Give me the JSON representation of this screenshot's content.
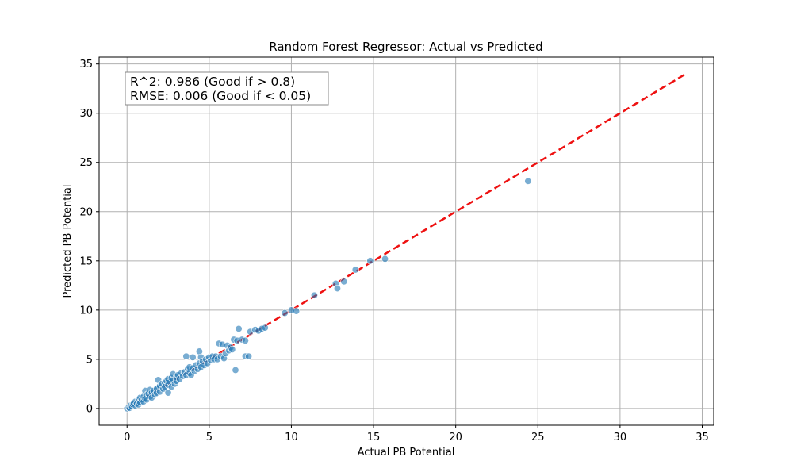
{
  "chart_data": {
    "type": "scatter",
    "title": "Random Forest Regressor: Actual vs Predicted",
    "xlabel": "Actual PB Potential",
    "ylabel": "Predicted PB Potential",
    "xlim": [
      -1.7,
      35.7
    ],
    "ylim": [
      -1.7,
      35.7
    ],
    "x_ticks": [
      0,
      5,
      10,
      15,
      20,
      25,
      30,
      35
    ],
    "y_ticks": [
      0,
      5,
      10,
      15,
      20,
      25,
      30,
      35
    ],
    "x_tick_labels": [
      "0",
      "5",
      "10",
      "15",
      "20",
      "25",
      "30",
      "35"
    ],
    "y_tick_labels": [
      "0",
      "5",
      "10",
      "15",
      "20",
      "25",
      "30",
      "35"
    ],
    "grid": true,
    "annotation": {
      "lines": [
        "R^2: 0.986 (Good if > 0.8)",
        "RMSE: 0.006 (Good if < 0.05)"
      ],
      "placement": "top-left"
    },
    "reference_line": {
      "from": [
        0,
        0
      ],
      "to": [
        34,
        34
      ],
      "style": "dashed",
      "color": "#ee1111"
    },
    "point_color": "#1f77b4",
    "point_edge_color": "#ffffff",
    "points": [
      [
        0.0,
        0.0
      ],
      [
        0.1,
        0.1
      ],
      [
        0.15,
        0.05
      ],
      [
        0.2,
        0.3
      ],
      [
        0.3,
        0.2
      ],
      [
        0.35,
        0.4
      ],
      [
        0.4,
        0.5
      ],
      [
        0.5,
        0.3
      ],
      [
        0.5,
        0.7
      ],
      [
        0.6,
        0.5
      ],
      [
        0.7,
        0.9
      ],
      [
        0.7,
        0.4
      ],
      [
        0.8,
        0.6
      ],
      [
        0.8,
        1.1
      ],
      [
        0.9,
        0.9
      ],
      [
        1.0,
        1.2
      ],
      [
        1.0,
        0.7
      ],
      [
        1.1,
        1.0
      ],
      [
        1.1,
        1.8
      ],
      [
        1.2,
        1.4
      ],
      [
        1.2,
        0.9
      ],
      [
        1.3,
        1.5
      ],
      [
        1.4,
        1.2
      ],
      [
        1.4,
        1.9
      ],
      [
        1.5,
        1.6
      ],
      [
        1.5,
        1.1
      ],
      [
        1.6,
        1.8
      ],
      [
        1.7,
        1.4
      ],
      [
        1.8,
        2.0
      ],
      [
        1.8,
        1.6
      ],
      [
        1.9,
        2.1
      ],
      [
        1.9,
        2.9
      ],
      [
        2.0,
        1.7
      ],
      [
        2.0,
        2.3
      ],
      [
        2.1,
        2.5
      ],
      [
        2.2,
        2.0
      ],
      [
        2.3,
        2.6
      ],
      [
        2.3,
        2.2
      ],
      [
        2.4,
        2.8
      ],
      [
        2.5,
        2.4
      ],
      [
        2.5,
        3.0
      ],
      [
        2.5,
        1.6
      ],
      [
        2.6,
        2.7
      ],
      [
        2.7,
        3.1
      ],
      [
        2.7,
        2.2
      ],
      [
        2.8,
        2.9
      ],
      [
        2.8,
        3.5
      ],
      [
        2.9,
        2.5
      ],
      [
        3.0,
        3.2
      ],
      [
        3.0,
        2.8
      ],
      [
        3.1,
        3.4
      ],
      [
        3.2,
        3.0
      ],
      [
        3.3,
        3.6
      ],
      [
        3.4,
        3.3
      ],
      [
        3.5,
        3.7
      ],
      [
        3.6,
        3.4
      ],
      [
        3.6,
        5.3
      ],
      [
        3.7,
        4.0
      ],
      [
        3.8,
        3.6
      ],
      [
        3.8,
        4.2
      ],
      [
        3.9,
        3.4
      ],
      [
        4.0,
        4.1
      ],
      [
        4.0,
        5.2
      ],
      [
        4.1,
        3.8
      ],
      [
        4.2,
        4.4
      ],
      [
        4.3,
        4.0
      ],
      [
        4.4,
        4.6
      ],
      [
        4.4,
        5.8
      ],
      [
        4.5,
        4.2
      ],
      [
        4.5,
        5.2
      ],
      [
        4.6,
        4.8
      ],
      [
        4.7,
        4.4
      ],
      [
        4.8,
        5.0
      ],
      [
        4.9,
        4.6
      ],
      [
        5.0,
        5.2
      ],
      [
        5.1,
        4.9
      ],
      [
        5.2,
        5.3
      ],
      [
        5.3,
        5.0
      ],
      [
        5.4,
        5.3
      ],
      [
        5.5,
        5.0
      ],
      [
        5.6,
        6.6
      ],
      [
        5.7,
        5.3
      ],
      [
        5.8,
        6.5
      ],
      [
        5.9,
        5.1
      ],
      [
        6.0,
        5.6
      ],
      [
        6.1,
        6.4
      ],
      [
        6.2,
        5.9
      ],
      [
        6.3,
        6.2
      ],
      [
        6.4,
        6.0
      ],
      [
        6.5,
        7.0
      ],
      [
        6.6,
        3.9
      ],
      [
        6.7,
        6.9
      ],
      [
        6.8,
        8.1
      ],
      [
        7.0,
        7.0
      ],
      [
        7.2,
        5.3
      ],
      [
        7.2,
        6.9
      ],
      [
        7.4,
        5.3
      ],
      [
        7.5,
        7.8
      ],
      [
        7.8,
        8.0
      ],
      [
        8.0,
        7.9
      ],
      [
        8.2,
        8.1
      ],
      [
        8.4,
        8.2
      ],
      [
        9.6,
        9.7
      ],
      [
        10.0,
        10.0
      ],
      [
        10.3,
        9.9
      ],
      [
        11.4,
        11.5
      ],
      [
        12.7,
        12.7
      ],
      [
        12.8,
        12.2
      ],
      [
        13.2,
        12.9
      ],
      [
        13.9,
        14.1
      ],
      [
        14.8,
        15.0
      ],
      [
        15.7,
        15.2
      ],
      [
        24.4,
        23.1
      ]
    ]
  }
}
